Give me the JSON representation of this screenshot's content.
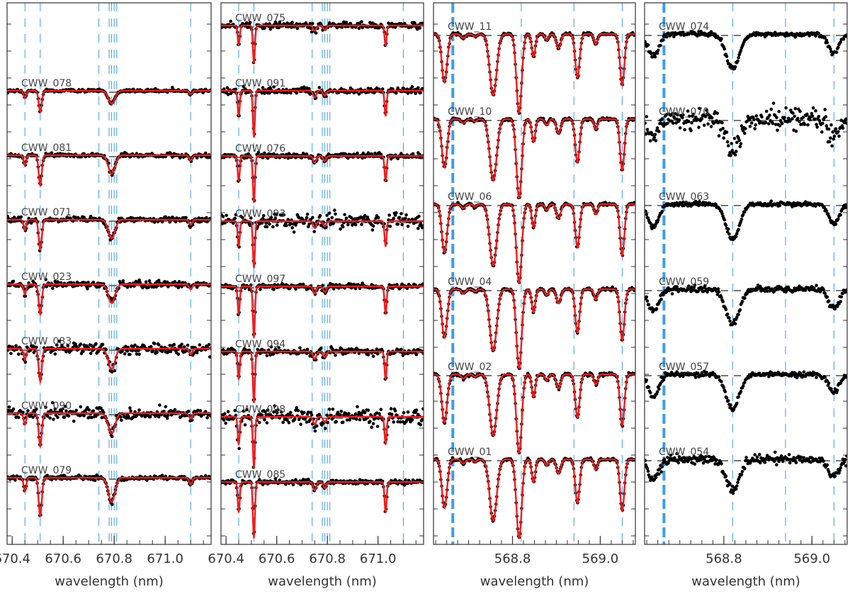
{
  "colors": {
    "model": "#ee1c1c",
    "data": "#000000",
    "continuum": "#777777",
    "line_marker": "#3d9ee8",
    "frame": "#333333",
    "label": "#444444"
  },
  "chart_data": [
    {
      "type": "line",
      "panel": "left-1",
      "xlabel": "wavelength (nm)",
      "xlim": [
        670.38,
        671.18
      ],
      "xticks": [
        "670.4",
        "670.6",
        "670.8",
        "671.0"
      ],
      "xtick_values": [
        670.4,
        670.6,
        670.8,
        671.0
      ],
      "line_markers": [
        670.45,
        670.51,
        670.74,
        670.78,
        670.79,
        670.8,
        670.81,
        671.1
      ],
      "thick_markers": [],
      "absorption_lines": [
        {
          "center": 670.45,
          "depth": 0.12,
          "width": 0.005
        },
        {
          "center": 670.51,
          "depth": 0.35,
          "width": 0.006
        },
        {
          "center": 670.79,
          "depth": 0.22,
          "width": 0.013
        },
        {
          "center": 671.1,
          "depth": 0.06,
          "width": 0.006
        }
      ],
      "spectra": [
        {
          "name": "CWW_078",
          "scale": 0.7,
          "noise": 0.006
        },
        {
          "name": "CWW_081",
          "scale": 1.0,
          "noise": 0.008
        },
        {
          "name": "CWW_071",
          "scale": 1.0,
          "noise": 0.01
        },
        {
          "name": "CWW_023",
          "scale": 1.0,
          "noise": 0.012
        },
        {
          "name": "CWW_083",
          "scale": 1.1,
          "noise": 0.02
        },
        {
          "name": "CWW_090",
          "scale": 1.1,
          "noise": 0.02
        },
        {
          "name": "CWW_079",
          "scale": 1.3,
          "noise": 0.008
        }
      ]
    },
    {
      "type": "line",
      "panel": "left-2",
      "xlabel": "wavelength (nm)",
      "xlim": [
        670.38,
        671.18
      ],
      "xticks": [
        "670.4",
        "670.6",
        "670.8",
        "671.0"
      ],
      "xtick_values": [
        670.4,
        670.6,
        670.8,
        671.0
      ],
      "line_markers": [
        670.45,
        670.51,
        670.74,
        670.78,
        670.79,
        670.8,
        670.81,
        671.1
      ],
      "thick_markers": [],
      "absorption_lines": [
        {
          "center": 670.45,
          "depth": 0.3,
          "width": 0.004
        },
        {
          "center": 670.51,
          "depth": 0.55,
          "width": 0.004
        },
        {
          "center": 670.75,
          "depth": 0.08,
          "width": 0.006
        },
        {
          "center": 670.79,
          "depth": 0.06,
          "width": 0.006
        },
        {
          "center": 671.03,
          "depth": 0.3,
          "width": 0.004
        }
      ],
      "spectra": [
        {
          "name": "CWW_075",
          "scale": 0.8,
          "noise": 0.012
        },
        {
          "name": "CWW_091",
          "scale": 1.0,
          "noise": 0.012
        },
        {
          "name": "CWW_076",
          "scale": 1.0,
          "noise": 0.01
        },
        {
          "name": "CWW_093",
          "scale": 1.0,
          "noise": 0.025
        },
        {
          "name": "CWW_097",
          "scale": 1.1,
          "noise": 0.01
        },
        {
          "name": "CWW_094",
          "scale": 1.1,
          "noise": 0.012
        },
        {
          "name": "CWW_098",
          "scale": 1.1,
          "noise": 0.03
        },
        {
          "name": "CWW_085",
          "scale": 1.2,
          "noise": 0.008
        }
      ]
    },
    {
      "type": "line",
      "panel": "right-1",
      "xlabel": "wavelength (nm)",
      "xlim": [
        568.62,
        569.08
      ],
      "xticks": [
        "568.8",
        "569.0"
      ],
      "xtick_values": [
        568.8,
        569.0
      ],
      "line_markers": [
        568.82,
        568.94,
        569.05
      ],
      "thick_markers": [
        568.664
      ],
      "absorption_lines": [
        {
          "center": 568.645,
          "depth": 0.95,
          "width": 0.006
        },
        {
          "center": 568.688,
          "depth": 0.08,
          "width": 0.005
        },
        {
          "center": 568.715,
          "depth": 0.05,
          "width": 0.004
        },
        {
          "center": 568.756,
          "depth": 1.2,
          "width": 0.008
        },
        {
          "center": 568.815,
          "depth": 1.55,
          "width": 0.006
        },
        {
          "center": 568.848,
          "depth": 0.45,
          "width": 0.004
        },
        {
          "center": 568.878,
          "depth": 0.12,
          "width": 0.004
        },
        {
          "center": 568.905,
          "depth": 0.28,
          "width": 0.005
        },
        {
          "center": 568.948,
          "depth": 0.85,
          "width": 0.005
        },
        {
          "center": 568.99,
          "depth": 0.2,
          "width": 0.004
        },
        {
          "center": 569.05,
          "depth": 1.0,
          "width": 0.005
        }
      ],
      "spectra": [
        {
          "name": "CWW_11",
          "scale": 1.0,
          "noise": 0.008
        },
        {
          "name": "CWW_10",
          "scale": 1.0,
          "noise": 0.008
        },
        {
          "name": "CWW_06",
          "scale": 1.0,
          "noise": 0.008
        },
        {
          "name": "CWW_04",
          "scale": 1.0,
          "noise": 0.008
        },
        {
          "name": "CWW_02",
          "scale": 1.0,
          "noise": 0.01
        },
        {
          "name": "CWW_01",
          "scale": 1.0,
          "noise": 0.008
        }
      ]
    },
    {
      "type": "scatter",
      "panel": "right-2",
      "xlabel": "wavelength (nm)",
      "xlim": [
        568.62,
        569.08
      ],
      "xticks": [
        "568.8",
        "569.0"
      ],
      "xtick_values": [
        568.8,
        569.0
      ],
      "line_markers": [
        568.82,
        568.94,
        569.05
      ],
      "thick_markers": [
        568.664
      ],
      "absorption_lines": [
        {
          "center": 568.64,
          "depth": 0.35,
          "width": 0.012
        },
        {
          "center": 568.82,
          "depth": 0.55,
          "width": 0.015
        },
        {
          "center": 569.05,
          "depth": 0.3,
          "width": 0.012
        }
      ],
      "spectra": [
        {
          "name": "CWW_074",
          "scale": 1.0,
          "noise": 0.012
        },
        {
          "name": "CWW_070",
          "scale": 0.9,
          "noise": 0.05
        },
        {
          "name": "CWW_063",
          "scale": 1.0,
          "noise": 0.01
        },
        {
          "name": "CWW_059",
          "scale": 1.0,
          "noise": 0.015
        },
        {
          "name": "CWW_057",
          "scale": 1.0,
          "noise": 0.012
        },
        {
          "name": "CWW_054",
          "scale": 0.9,
          "noise": 0.02
        }
      ]
    }
  ]
}
